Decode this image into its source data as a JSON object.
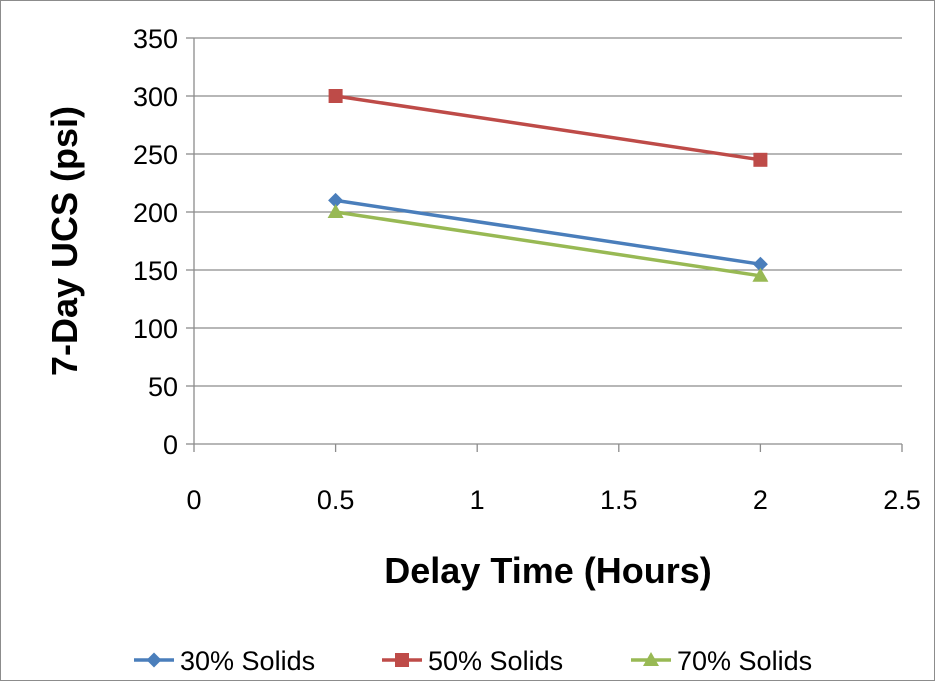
{
  "chart_data": {
    "type": "line",
    "title": "",
    "xlabel": "Delay Time (Hours)",
    "ylabel": "7-Day UCS (psi)",
    "xlim": [
      0,
      2.5
    ],
    "ylim": [
      0,
      350
    ],
    "x_ticks": [
      "0",
      "0.5",
      "1",
      "1.5",
      "2",
      "2.5"
    ],
    "y_ticks": [
      "0",
      "50",
      "100",
      "150",
      "200",
      "250",
      "300",
      "350"
    ],
    "grid": "horizontal",
    "legend_position": "bottom",
    "series": [
      {
        "name": "30% Solids",
        "color": "#4a7ebb",
        "marker": "diamond",
        "x": [
          0.5,
          2
        ],
        "y": [
          210,
          155
        ]
      },
      {
        "name": "50% Solids",
        "color": "#be4b48",
        "marker": "square",
        "x": [
          0.5,
          2
        ],
        "y": [
          300,
          245
        ]
      },
      {
        "name": "70% Solids",
        "color": "#98b954",
        "marker": "triangle",
        "x": [
          0.5,
          2
        ],
        "y": [
          200,
          145
        ]
      }
    ]
  }
}
